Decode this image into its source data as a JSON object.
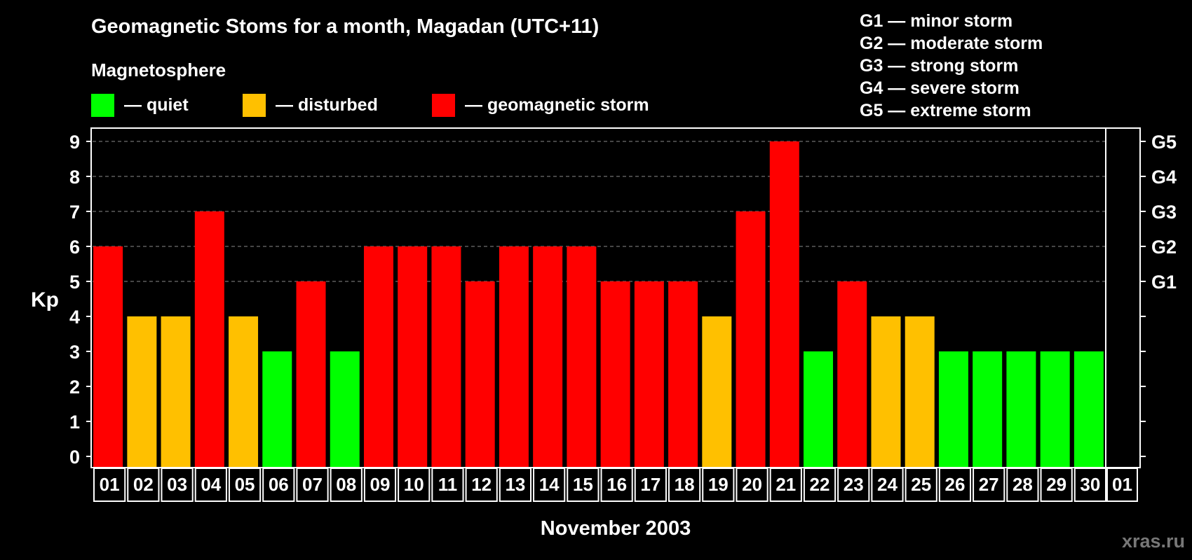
{
  "chart_data": {
    "type": "bar",
    "title": "Geomagnetic Stoms for a month, Magadan (UTC+11)",
    "xlabel": "November 2003",
    "ylabel": "Kp",
    "ylim": [
      0,
      9
    ],
    "yticks": [
      "0",
      "1",
      "2",
      "3",
      "4",
      "5",
      "6",
      "7",
      "8",
      "9"
    ],
    "grid": true,
    "categories": [
      "01",
      "02",
      "03",
      "04",
      "05",
      "06",
      "07",
      "08",
      "09",
      "10",
      "11",
      "12",
      "13",
      "14",
      "15",
      "16",
      "17",
      "18",
      "19",
      "20",
      "21",
      "22",
      "23",
      "24",
      "25",
      "26",
      "27",
      "28",
      "29",
      "30"
    ],
    "values": [
      6,
      4,
      4,
      7,
      4,
      3,
      5,
      3,
      6,
      6,
      6,
      5,
      6,
      6,
      6,
      5,
      5,
      5,
      4,
      7,
      9,
      3,
      5,
      4,
      4,
      3,
      3,
      3,
      3,
      3
    ],
    "trailing_category": "01",
    "legend_heading": "Magnetosphere",
    "legend": [
      {
        "label": "— quiet",
        "color": "#00ff00"
      },
      {
        "label": "— disturbed",
        "color": "#ffc000"
      },
      {
        "label": "— geomagnetic storm",
        "color": "#ff0000"
      }
    ],
    "storm_scale": [
      {
        "text": "G1 — minor storm",
        "level": "G1",
        "kp": 5
      },
      {
        "text": "G2 — moderate storm",
        "level": "G2",
        "kp": 6
      },
      {
        "text": "G3 — strong storm",
        "level": "G3",
        "kp": 7
      },
      {
        "text": "G4 — severe storm",
        "level": "G4",
        "kp": 8
      },
      {
        "text": "G5 — extreme storm",
        "level": "G5",
        "kp": 9
      }
    ],
    "colors": {
      "quiet": "#00ff00",
      "disturbed": "#ffc000",
      "storm": "#ff0000",
      "background": "#000000",
      "grid": "#8a8a8a"
    },
    "watermark": "xras.ru"
  }
}
